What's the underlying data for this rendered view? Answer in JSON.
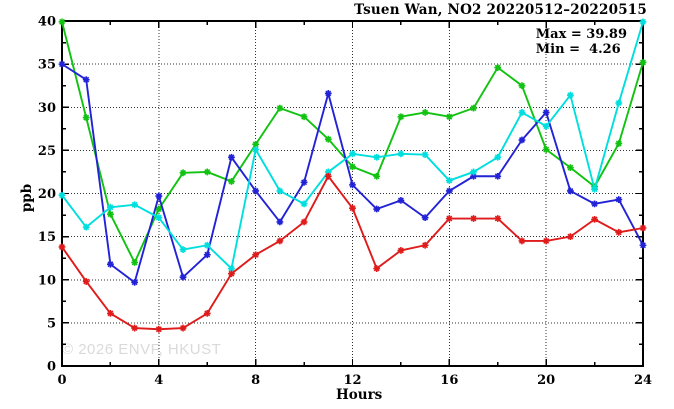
{
  "title": "Tsuen Wan, NO2 20220512–20220515",
  "stats": {
    "max_line": "Max = 39.89",
    "min_line": "Min =  4.26"
  },
  "watermark": "© 2026 ENVF, HKUST",
  "chart_data": {
    "type": "line",
    "title": "Tsuen Wan, NO2 20220512–20220515",
    "xlabel": "Hours",
    "ylabel": "ppb",
    "xlim": [
      0,
      24
    ],
    "ylim": [
      0,
      40
    ],
    "x_major_ticks": [
      0,
      4,
      8,
      12,
      16,
      20,
      24
    ],
    "x_minor_ticks": [
      2,
      6,
      10,
      14,
      18,
      22
    ],
    "y_major_ticks": [
      0,
      5,
      10,
      15,
      20,
      25,
      30,
      35,
      40
    ],
    "y_minor_ticks": [
      2.5,
      7.5,
      12.5,
      17.5,
      22.5,
      27.5,
      32.5,
      37.5
    ],
    "grid": true,
    "legend_position": "none",
    "max_value": 39.89,
    "min_value": 4.26,
    "x": [
      0,
      1,
      2,
      3,
      4,
      5,
      6,
      7,
      8,
      9,
      10,
      11,
      12,
      13,
      14,
      15,
      16,
      17,
      18,
      19,
      20,
      21,
      22,
      23,
      24
    ],
    "series": [
      {
        "name": "series-green",
        "color": "#11c211",
        "values": [
          39.9,
          28.8,
          17.6,
          12.0,
          18.2,
          22.4,
          22.5,
          21.4,
          25.7,
          29.9,
          28.9,
          26.3,
          23.1,
          22.0,
          28.9,
          29.4,
          28.9,
          29.9,
          34.6,
          32.5,
          25.1,
          23.0,
          20.8,
          25.8,
          35.2
        ]
      },
      {
        "name": "series-blue",
        "color": "#2222d6",
        "values": [
          35.0,
          33.2,
          11.8,
          9.7,
          19.7,
          10.3,
          12.9,
          24.2,
          20.3,
          16.7,
          21.3,
          31.6,
          21.0,
          18.2,
          19.2,
          17.2,
          20.3,
          22.0,
          22.0,
          26.2,
          29.4,
          20.3,
          18.8,
          19.3,
          14.0
        ]
      },
      {
        "name": "series-cyan",
        "color": "#00dede",
        "values": [
          19.8,
          16.1,
          18.4,
          18.7,
          17.2,
          13.5,
          14.0,
          11.3,
          25.1,
          20.3,
          18.8,
          22.5,
          24.6,
          24.2,
          24.6,
          24.5,
          21.5,
          22.5,
          24.2,
          29.4,
          27.8,
          31.4,
          20.5,
          30.5,
          39.9
        ]
      },
      {
        "name": "series-red",
        "color": "#df1b1b",
        "values": [
          13.8,
          9.8,
          6.1,
          4.4,
          4.26,
          4.4,
          6.1,
          10.7,
          12.9,
          14.5,
          16.7,
          22.0,
          18.3,
          11.3,
          13.4,
          14.0,
          17.1,
          17.1,
          17.1,
          14.5,
          14.5,
          15.0,
          17.0,
          15.5,
          16.0
        ]
      }
    ]
  },
  "colors": {
    "background": "#ffffff",
    "axis": "#000000",
    "grid": "#000000",
    "watermark": "#dadada"
  }
}
